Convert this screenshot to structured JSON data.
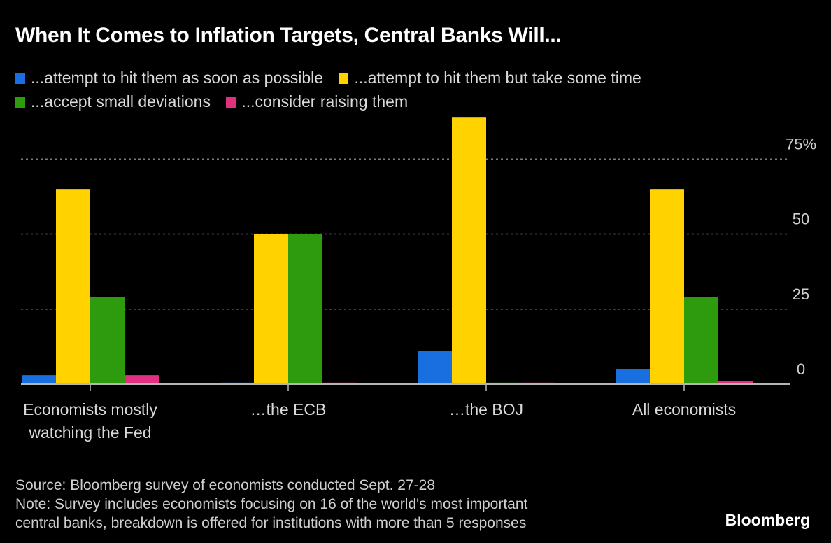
{
  "chart_data": {
    "type": "bar",
    "title": "When It Comes to Inflation Targets, Central Banks Will...",
    "xlabel": "",
    "ylabel": "",
    "ylim": [
      0,
      90
    ],
    "yticks": [
      0,
      25,
      50,
      75
    ],
    "ytick_labels": [
      "0",
      "25",
      "50",
      "75%"
    ],
    "grid": true,
    "legend_position": "top",
    "categories": [
      "Economists mostly watching the Fed",
      "…the ECB",
      "…the BOJ",
      "All economists"
    ],
    "category_lines": [
      [
        "Economists mostly",
        "watching the Fed"
      ],
      [
        "…the ECB"
      ],
      [
        "…the BOJ"
      ],
      [
        "All economists"
      ]
    ],
    "series": [
      {
        "name": "...attempt to hit them as soon as possible",
        "color": "#1a6fe0",
        "values": [
          3,
          0.5,
          11,
          5
        ]
      },
      {
        "name": "...attempt to hit them but take some time",
        "color": "#ffd200",
        "values": [
          65,
          50,
          89,
          65
        ]
      },
      {
        "name": "...accept small deviations",
        "color": "#2e9a0e",
        "values": [
          29,
          50,
          0.5,
          29
        ]
      },
      {
        "name": "...consider raising them",
        "color": "#e0307e",
        "values": [
          3,
          0.5,
          0.5,
          1
        ]
      }
    ]
  },
  "footer": {
    "source": "Source: Bloomberg survey of economists conducted Sept. 27-28",
    "note_line1": "Note: Survey includes economists focusing on 16 of the world's most important",
    "note_line2": "central banks, breakdown is offered for institutions with more than 5 responses",
    "brand": "Bloomberg"
  }
}
